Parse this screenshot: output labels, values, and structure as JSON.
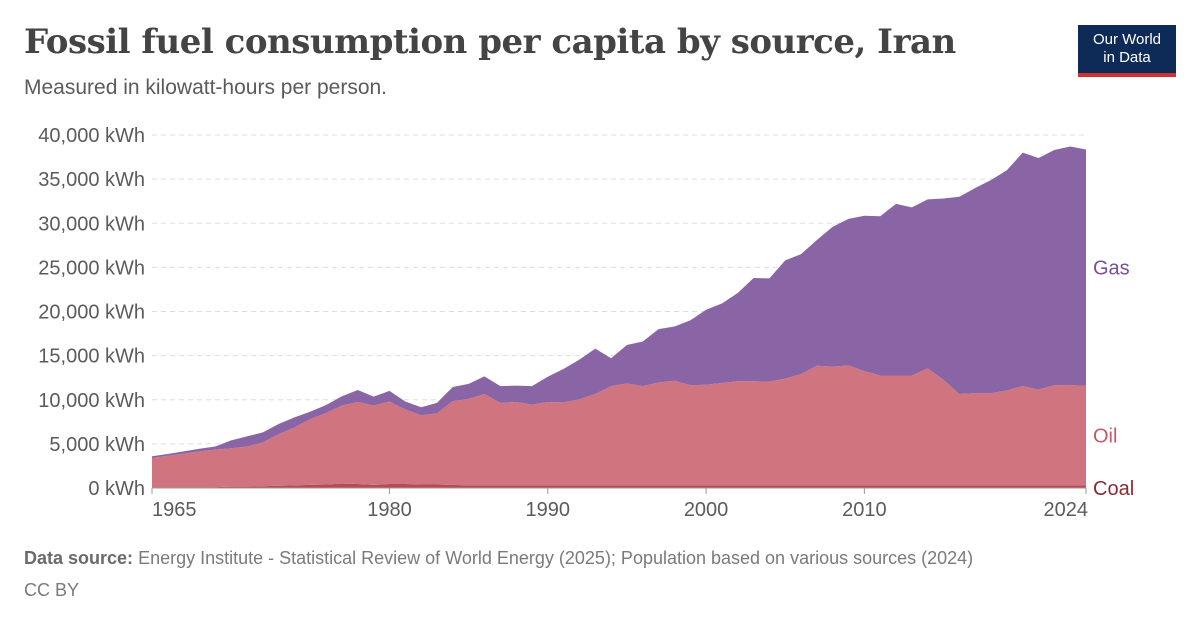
{
  "header": {
    "title": "Fossil fuel consumption per capita by source, Iran",
    "subtitle": "Measured in kilowatt-hours per person."
  },
  "logo": {
    "line1": "Our World",
    "line2": "in Data"
  },
  "footer": {
    "source_label": "Data source:",
    "source_text": "Energy Institute - Statistical Review of World Energy (2025); Population based on various sources (2024)",
    "license": "CC BY"
  },
  "colors": {
    "gas": "#8a65a6",
    "gas_label": "#7a4f9a",
    "oil": "#d07480",
    "oil_label": "#c25a68",
    "coal": "#b84a56",
    "coal_label": "#8a2a36",
    "grid": "#dddddd",
    "axis_text": "#5b5b5b"
  },
  "chart_data": {
    "type": "area",
    "stacked": true,
    "y_unit": "kWh",
    "ylim": [
      0,
      40000
    ],
    "y_ticks": [
      0,
      5000,
      10000,
      15000,
      20000,
      25000,
      30000,
      35000,
      40000
    ],
    "y_tick_labels": [
      "0 kWh",
      "5,000 kWh",
      "10,000 kWh",
      "15,000 kWh",
      "20,000 kWh",
      "25,000 kWh",
      "30,000 kWh",
      "35,000 kWh",
      "40,000 kWh"
    ],
    "x_ticks": [
      1965,
      1980,
      1990,
      2000,
      2010,
      2024
    ],
    "x_tick_labels": [
      "1965",
      "1980",
      "1990",
      "2000",
      "2010",
      "2024"
    ],
    "grid": "horizontal dashed",
    "legend": "inline labels at right end",
    "x": [
      1965,
      1966,
      1967,
      1968,
      1969,
      1970,
      1971,
      1972,
      1973,
      1974,
      1975,
      1976,
      1977,
      1978,
      1979,
      1980,
      1981,
      1982,
      1983,
      1984,
      1985,
      1986,
      1987,
      1988,
      1989,
      1990,
      1991,
      1992,
      1993,
      1994,
      1995,
      1996,
      1997,
      1998,
      1999,
      2000,
      2001,
      2002,
      2003,
      2004,
      2005,
      2006,
      2007,
      2008,
      2009,
      2010,
      2011,
      2012,
      2013,
      2014,
      2015,
      2016,
      2017,
      2018,
      2019,
      2020,
      2021,
      2022,
      2023,
      2024
    ],
    "series": [
      {
        "name": "Coal",
        "values": [
          100,
          100,
          100,
          100,
          100,
          150,
          150,
          200,
          250,
          300,
          350,
          400,
          500,
          450,
          350,
          450,
          450,
          400,
          400,
          350,
          300,
          300,
          300,
          300,
          300,
          300,
          300,
          300,
          300,
          300,
          300,
          300,
          300,
          300,
          300,
          300,
          300,
          300,
          300,
          300,
          300,
          300,
          300,
          300,
          300,
          300,
          300,
          300,
          300,
          300,
          300,
          300,
          300,
          300,
          300,
          300,
          300,
          300,
          300,
          300
        ]
      },
      {
        "name": "Oil",
        "values": [
          3300,
          3550,
          3800,
          4050,
          4250,
          4350,
          4550,
          4950,
          5850,
          6550,
          7450,
          8100,
          8850,
          9300,
          9000,
          9350,
          8450,
          7850,
          8050,
          9500,
          9800,
          10350,
          9350,
          9450,
          9150,
          9450,
          9400,
          9750,
          10350,
          11250,
          11550,
          11250,
          11650,
          11850,
          11350,
          11400,
          11600,
          11800,
          11800,
          11750,
          12100,
          12600,
          13550,
          13450,
          13600,
          12950,
          12450,
          12450,
          12450,
          13250,
          11950,
          10350,
          10450,
          10450,
          10750,
          11250,
          10850,
          11350,
          11350,
          11300
        ]
      },
      {
        "name": "Gas",
        "values": [
          200,
          200,
          250,
          300,
          350,
          900,
          1150,
          1150,
          1150,
          1150,
          850,
          900,
          1050,
          1350,
          1000,
          1200,
          900,
          900,
          1200,
          1600,
          1700,
          2000,
          1900,
          1850,
          2100,
          2850,
          3800,
          4500,
          5150,
          3150,
          4350,
          5050,
          6050,
          6150,
          7350,
          8500,
          9000,
          10000,
          11700,
          11700,
          13400,
          13600,
          14250,
          15850,
          16600,
          17600,
          18050,
          19450,
          19050,
          19150,
          20550,
          22350,
          23250,
          24150,
          24950,
          26450,
          26250,
          26650,
          27050,
          26750
        ]
      }
    ]
  }
}
